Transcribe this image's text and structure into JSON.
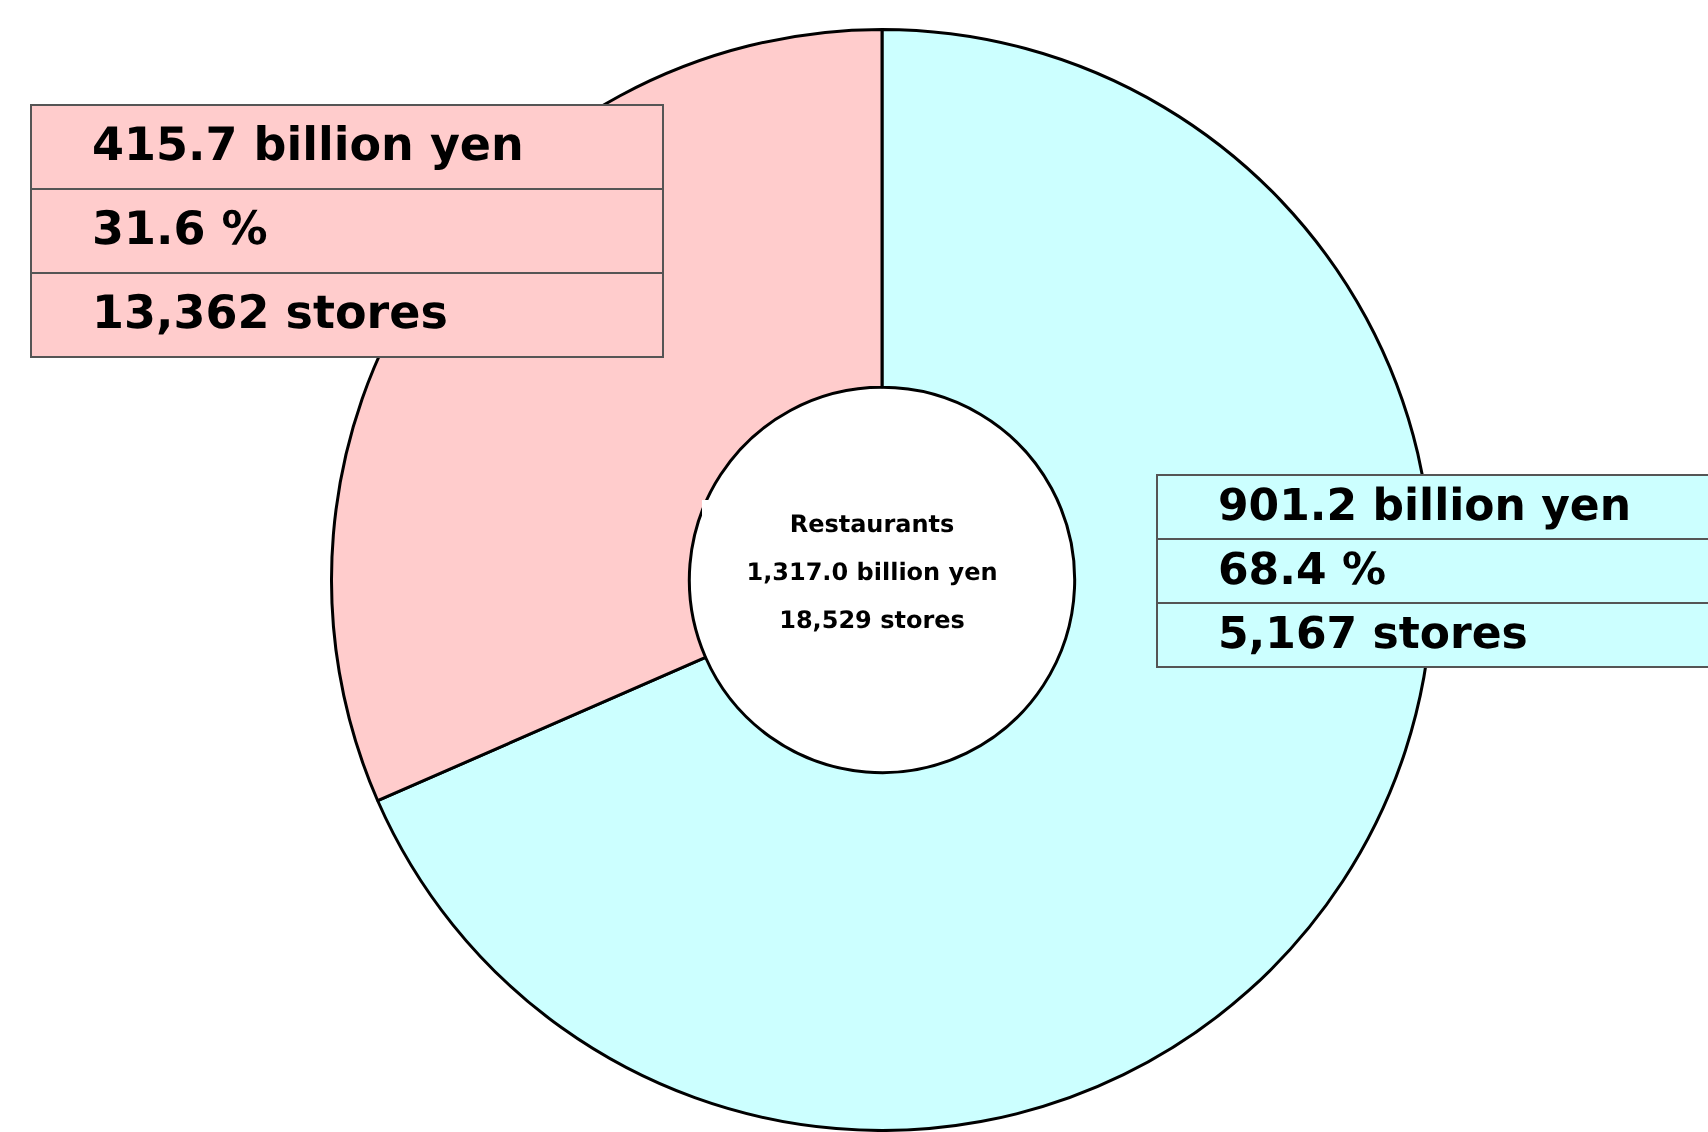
{
  "chart_data": {
    "type": "donut",
    "categories": [
      null,
      null
    ],
    "values": [
      901.2,
      415.7
    ],
    "colors": [
      "#ccffff",
      "#ffcccc"
    ],
    "value_labels": [
      "901.2 billion yen",
      "415.7 billion yen"
    ],
    "annotations": [
      "68.4 %",
      "5,167 stores",
      "31.6 %",
      "13,362 stores",
      "Restaurants",
      "1,317.0 billion yen",
      "18,529 stores"
    ]
  }
}
